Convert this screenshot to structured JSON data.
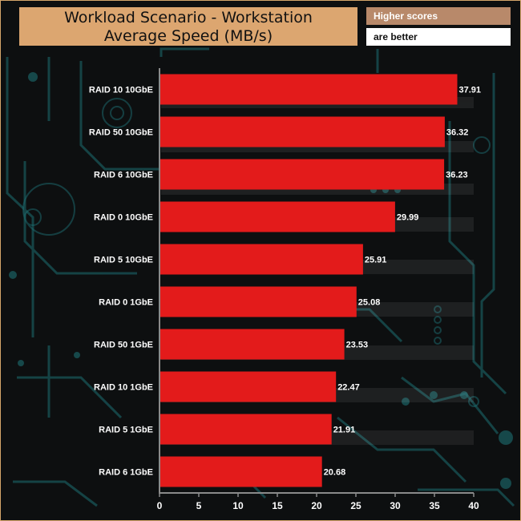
{
  "title": {
    "line1": "Workload Scenario - Workstation",
    "line2": "Average Speed (MB/s)"
  },
  "note": {
    "line1": "Higher scores",
    "line2": "are better"
  },
  "colors": {
    "bar": "#e31b1b",
    "title_bg": "#dca670",
    "note_bg": "#b8896a",
    "background": "#0d0f10",
    "circuit": "#1d6e72"
  },
  "chart_data": {
    "type": "bar",
    "orientation": "horizontal",
    "categories": [
      "RAID 10 10GbE",
      "RAID 50 10GbE",
      "RAID 6 10GbE",
      "RAID 0 10GbE",
      "RAID 5 10GbE",
      "RAID 0 1GbE",
      "RAID 50 1GbE",
      "RAID 10 1GbE",
      "RAID 5 1GbE",
      "RAID 6 1GbE"
    ],
    "values": [
      37.91,
      36.32,
      36.23,
      29.99,
      25.91,
      25.08,
      23.53,
      22.47,
      21.91,
      20.68
    ],
    "value_labels": [
      "37.91",
      "36.32",
      "36.23",
      "29.99",
      "25.91",
      "25.08",
      "23.53",
      "22.47",
      "21.91",
      "20.68"
    ],
    "xlim": [
      0,
      40
    ],
    "x_ticks": [
      0,
      5,
      10,
      15,
      20,
      25,
      30,
      35,
      40
    ],
    "grid": false
  }
}
